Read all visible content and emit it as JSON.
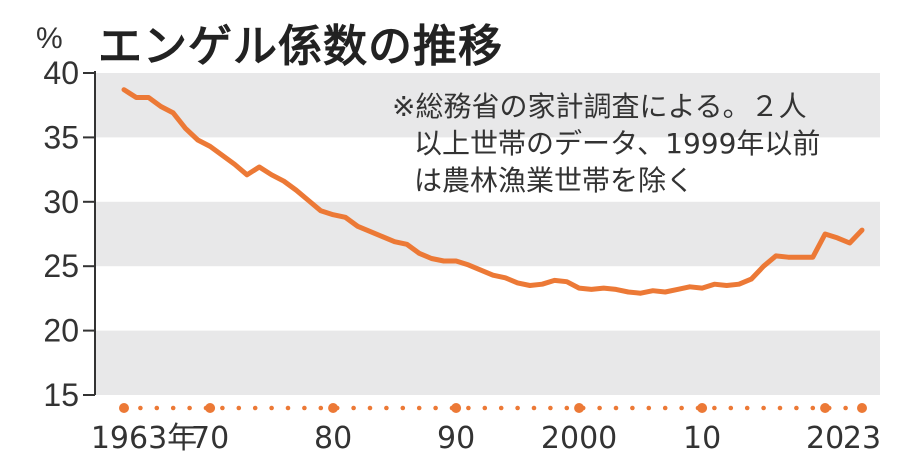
{
  "title": "エンゲル係数の推移",
  "unit": "%",
  "note": {
    "line1": "※総務省の家計調査による。２人",
    "line2": "以上世帯のデータ、1999年以前",
    "line3": "は農林漁業世帯を除く"
  },
  "colors": {
    "line": "#ec7936",
    "band": "#e8e8e9",
    "axis": "#333333",
    "marker": "#ec7936"
  },
  "chart_data": {
    "type": "line",
    "title": "エンゲル係数の推移",
    "ylabel": "%",
    "ylim": [
      15,
      40
    ],
    "yticks": [
      15,
      20,
      25,
      30,
      35,
      40
    ],
    "xlim": [
      1963,
      2023
    ],
    "xticks": [
      {
        "value": 1963,
        "label": "1963年"
      },
      {
        "value": 1970,
        "label": "70"
      },
      {
        "value": 1980,
        "label": "80"
      },
      {
        "value": 1990,
        "label": "90"
      },
      {
        "value": 2000,
        "label": "2000"
      },
      {
        "value": 2010,
        "label": "10"
      },
      {
        "value": 2020,
        "label": "20"
      },
      {
        "value": 2023,
        "label": "23"
      }
    ],
    "grid": "alternating horizontal bands",
    "x": [
      1963,
      1964,
      1965,
      1966,
      1967,
      1968,
      1969,
      1970,
      1971,
      1972,
      1973,
      1974,
      1975,
      1976,
      1977,
      1978,
      1979,
      1980,
      1981,
      1982,
      1983,
      1984,
      1985,
      1986,
      1987,
      1988,
      1989,
      1990,
      1991,
      1992,
      1993,
      1994,
      1995,
      1996,
      1997,
      1998,
      1999,
      2000,
      2001,
      2002,
      2003,
      2004,
      2005,
      2006,
      2007,
      2008,
      2009,
      2010,
      2011,
      2012,
      2013,
      2014,
      2015,
      2016,
      2017,
      2018,
      2019,
      2020,
      2021,
      2022,
      2023
    ],
    "series": [
      {
        "values": [
          38.7,
          38.1,
          38.1,
          37.4,
          36.9,
          35.7,
          34.8,
          34.3,
          33.6,
          32.9,
          32.1,
          32.7,
          32.1,
          31.6,
          30.9,
          30.1,
          29.3,
          29.0,
          28.8,
          28.1,
          27.7,
          27.3,
          26.9,
          26.7,
          26.0,
          25.6,
          25.4,
          25.4,
          25.1,
          24.7,
          24.3,
          24.1,
          23.7,
          23.5,
          23.6,
          23.9,
          23.8,
          23.3,
          23.2,
          23.3,
          23.2,
          23.0,
          22.9,
          23.1,
          23.0,
          23.2,
          23.4,
          23.3,
          23.6,
          23.5,
          23.6,
          24.0,
          25.0,
          25.8,
          25.7,
          25.7,
          25.7,
          27.5,
          27.2,
          26.8,
          27.8
        ]
      }
    ]
  }
}
